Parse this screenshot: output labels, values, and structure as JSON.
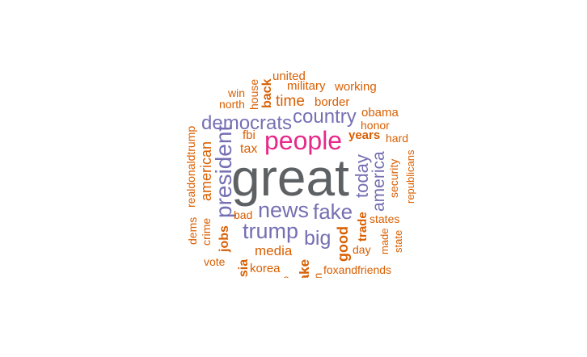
{
  "wordcloud": {
    "colors": {
      "top": "#5d6164",
      "second": "#e7298a",
      "third": "#7570b3",
      "rest": "#d95f02"
    },
    "words": {
      "great": "great",
      "people": "people",
      "democrats": "democrats",
      "country": "country",
      "news": "news",
      "fake": "fake",
      "trump": "trump",
      "big": "big",
      "president": "president",
      "america": "america",
      "today": "today",
      "united": "united",
      "military": "military",
      "working": "working",
      "win": "win",
      "house": "house",
      "back": "back",
      "north": "north",
      "time": "time",
      "border": "border",
      "obama": "obama",
      "honor": "honor",
      "fbi": "fbi",
      "years": "years",
      "hard": "hard",
      "tax": "tax",
      "american": "american",
      "realdonaldtrump": "realdonaldtrump",
      "security": "security",
      "republicans": "republicans",
      "bad": "bad",
      "dems": "dems",
      "crime": "crime",
      "jobs": "jobs",
      "media": "media",
      "good": "good",
      "trade": "trade",
      "states": "states",
      "made": "made",
      "state": "state",
      "day": "day",
      "vote": "vote",
      "russia": "russia",
      "korea": "korea",
      "fake2": "fake",
      "election": "election",
      "foxandfriends": "foxandfriends",
      "clipped_o": "o"
    }
  }
}
